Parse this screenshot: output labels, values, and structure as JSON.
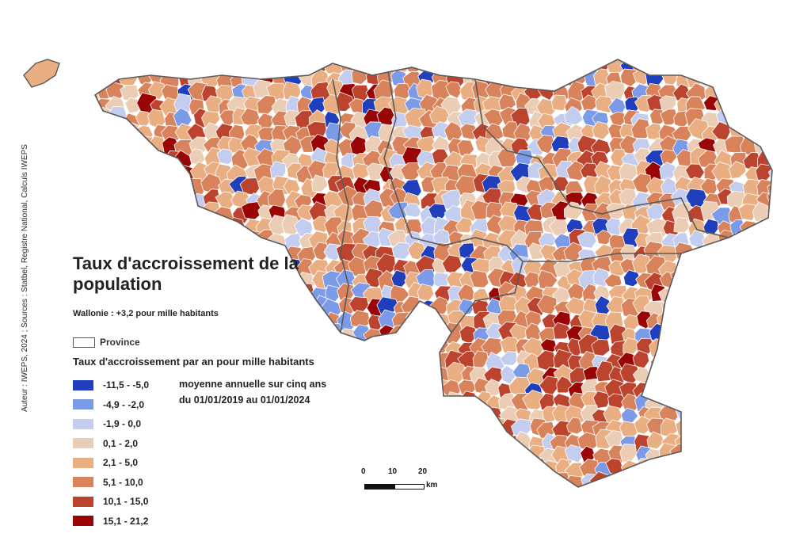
{
  "map": {
    "title": "Taux d'accroissement de la population",
    "summary": "Wallonie : +3,2 pour mille habitants",
    "credit": "Auteur : IWEPS, 2024 ; Sources : Statbel, Registre National, Calculs IWEPS",
    "province_label": "Province",
    "legend_title": "Taux d'accroissement par an pour mille habitants",
    "note_line1": "moyenne annuelle sur cinq ans",
    "note_line2": "du 01/01/2019 au 01/01/2024"
  },
  "legend": [
    {
      "label": "-11,5 - -5,0",
      "color": "#1f3fbd"
    },
    {
      "label": "-4,9 - -2,0",
      "color": "#7b9be8"
    },
    {
      "label": "-1,9 - 0,0",
      "color": "#c2cdf0"
    },
    {
      "label": "0,1 - 2,0",
      "color": "#ebccb5"
    },
    {
      "label": "2,1 - 5,0",
      "color": "#e9ae82"
    },
    {
      "label": "5,1 - 10,0",
      "color": "#d8835c"
    },
    {
      "label": "10,1 - 15,0",
      "color": "#bc432e"
    },
    {
      "label": "15,1 - 21,2",
      "color": "#9a0606"
    }
  ],
  "scale": {
    "ticks": [
      "0",
      "10",
      "20"
    ],
    "unit": "km"
  },
  "colors": {
    "province_border": "#5a5a5a",
    "commune_border": "#ffffff",
    "background": "#ffffff"
  }
}
